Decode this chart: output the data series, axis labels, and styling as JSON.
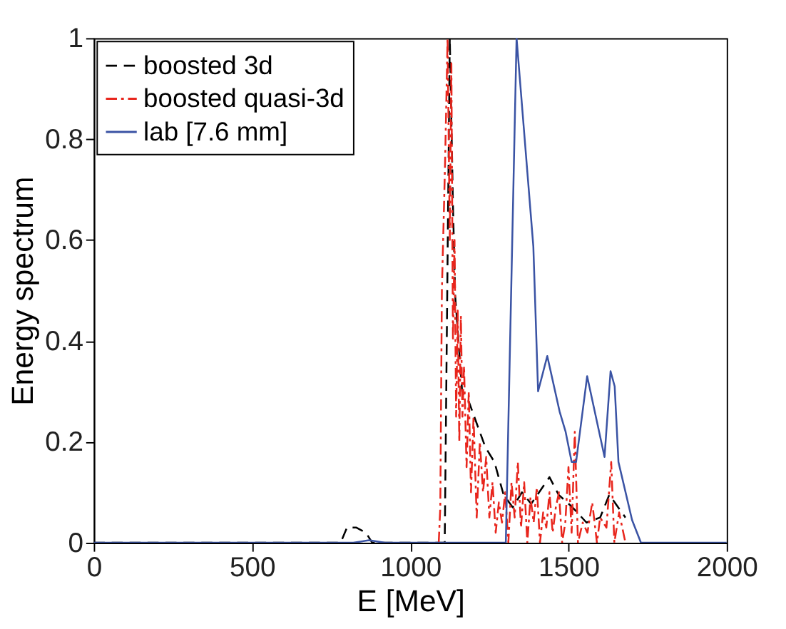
{
  "chart_data": {
    "type": "line",
    "xlabel": "E [MeV]",
    "ylabel": "Energy spectrum",
    "xlim": [
      0,
      2000
    ],
    "ylim": [
      0,
      1
    ],
    "xticks": [
      0,
      500,
      1000,
      1500,
      2000
    ],
    "yticks": [
      0,
      0.2,
      0.4,
      0.6,
      0.8,
      1
    ],
    "grid": false,
    "legend": "top left",
    "marker": "none",
    "series": [
      {
        "name": "boosted 3d",
        "color": "#000000",
        "line_style": "dashed",
        "x": [
          0,
          780,
          800,
          830,
          860,
          880,
          1100,
          1109,
          1125,
          1135,
          1142,
          1164,
          1185,
          1208,
          1237,
          1266,
          1295,
          1324,
          1353,
          1382,
          1440,
          1469,
          1513,
          1557,
          1600,
          1629,
          1680
        ],
        "values": [
          0,
          0,
          0.03,
          0.03,
          0.02,
          0,
          0,
          0,
          1,
          0.67,
          0.49,
          0.3,
          0.28,
          0.24,
          0.19,
          0.16,
          0.095,
          0.07,
          0.1,
          0.077,
          0.13,
          0.095,
          0.07,
          0.04,
          0.05,
          0.095,
          0.05
        ]
      },
      {
        "name": "boosted quasi-3d",
        "color": "#e8251c",
        "line_style": "dashdot",
        "x": [
          1090,
          1095,
          1100,
          1110,
          1118,
          1125,
          1130,
          1135,
          1140,
          1145,
          1150,
          1155,
          1160,
          1165,
          1170,
          1178,
          1185,
          1192,
          1200,
          1210,
          1220,
          1230,
          1240,
          1250,
          1260,
          1270,
          1280,
          1290,
          1300,
          1310,
          1320,
          1330,
          1340,
          1350,
          1360,
          1370,
          1380,
          1390,
          1400,
          1410,
          1420,
          1430,
          1440,
          1450,
          1460,
          1470,
          1480,
          1490,
          1500,
          1510,
          1520,
          1530,
          1545,
          1560,
          1575,
          1590,
          1600,
          1620,
          1635,
          1645,
          1660,
          1680
        ],
        "values": [
          0,
          0.07,
          0.5,
          0.75,
          1,
          0.6,
          0.95,
          0.4,
          0.6,
          0.25,
          0.46,
          0.2,
          0.45,
          0.25,
          0.35,
          0.15,
          0.3,
          0.1,
          0.25,
          0.05,
          0.2,
          0.1,
          0.17,
          0.05,
          0.12,
          0.02,
          0.08,
          0.04,
          0.1,
          0,
          0.12,
          0.05,
          0.16,
          0.03,
          0.12,
          0,
          0.09,
          0.04,
          0.11,
          0,
          0.06,
          0.03,
          0.1,
          0.02,
          0.07,
          0.1,
          0,
          0.04,
          0.15,
          0.02,
          0.22,
          0,
          0.04,
          0.02,
          0.08,
          0,
          0.05,
          0.03,
          0.16,
          0,
          0.06,
          0
        ]
      },
      {
        "name": "lab [7.6 mm]",
        "color": "#3a53a4",
        "line_style": "solid",
        "x": [
          0,
          820,
          870,
          920,
          1302,
          1336,
          1389,
          1404,
          1433,
          1472,
          1491,
          1510,
          1524,
          1559,
          1614,
          1633,
          1646,
          1658,
          1701,
          1729,
          2000
        ],
        "values": [
          0,
          0,
          0.005,
          0,
          0,
          1,
          0.587,
          0.3,
          0.37,
          0.26,
          0.22,
          0.16,
          0.16,
          0.33,
          0.17,
          0.34,
          0.31,
          0.16,
          0.045,
          0,
          0
        ]
      }
    ]
  }
}
